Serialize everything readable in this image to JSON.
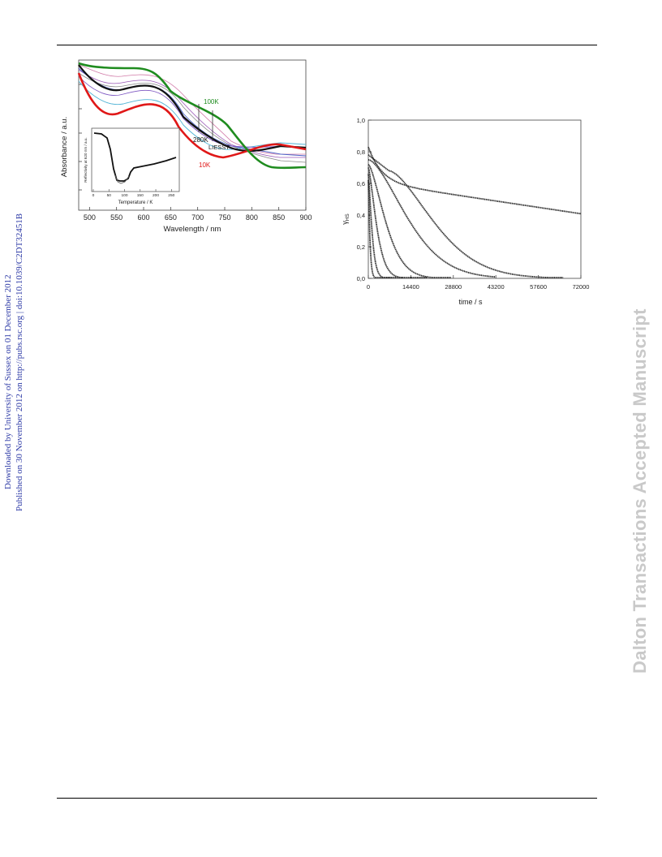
{
  "sidebar": {
    "line1": "Downloaded by University of Sussex on 01 December 2012",
    "line2": "Published on 30 November 2012 on http://pubs.rsc.org | doi:10.1039/C2DT32451B"
  },
  "watermark": "Dalton Transactions Accepted Manuscript",
  "chart_data": [
    {
      "type": "line",
      "xlabel": "Wavelength / nm",
      "ylabel": "Absorbance / a.u.",
      "xlim": [
        480,
        900
      ],
      "xticks": [
        "500",
        "550",
        "600",
        "650",
        "700",
        "750",
        "800",
        "850",
        "900"
      ],
      "annotations": {
        "label_100k": "100K",
        "label_280k": "280K",
        "label_liesst": "LIESST",
        "label_10k": "10K"
      },
      "colors": {
        "green": "#1f8c1f",
        "red": "#e01818",
        "black": "#111111",
        "purple": "#9b59b6",
        "blue": "#4c63c8",
        "cyan": "#52b4d6",
        "grey": "#8a8a8a",
        "pink": "#d17ba8"
      },
      "inset": {
        "xlabel": "Temperature / K",
        "ylabel": "Reflectivity at 620 nm / a.u.",
        "xticks": [
          "0",
          "50",
          "100",
          "150",
          "200",
          "250"
        ],
        "xlim": [
          0,
          270
        ]
      }
    },
    {
      "type": "scatter",
      "xlabel": "time  / s",
      "ylabel": "γHS",
      "ylabel_main": "γ",
      "ylabel_sub": "HS",
      "xlim": [
        0,
        72000
      ],
      "ylim": [
        0,
        1.0
      ],
      "xticks": [
        "0",
        "14400",
        "28800",
        "43200",
        "57600",
        "72000"
      ],
      "yticks": [
        "0,0",
        "0,2",
        "0,4",
        "0,6",
        "0,8",
        "1,0"
      ]
    }
  ]
}
